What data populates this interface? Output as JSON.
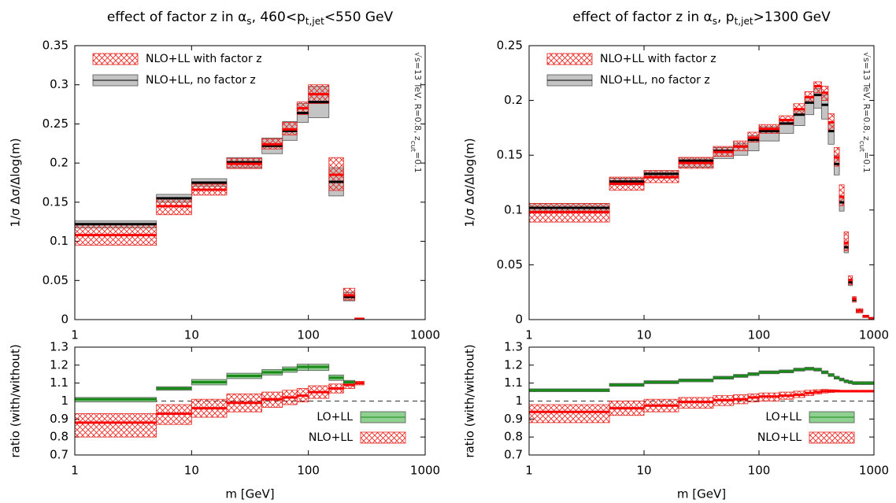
{
  "chart_data": [
    {
      "type": "band-histogram",
      "title": [
        "effect of factor z in α",
        "s",
        ", 460<p",
        "t,jet",
        "<550 GeV"
      ],
      "annotation": [
        "√s=13 TeV, R=0.8, z",
        "cut",
        "=0.1"
      ],
      "ylabel": "1/σ Δσ/Δlog(m)",
      "log_x": true,
      "xlim": [
        1,
        1000
      ],
      "xticks": [
        1,
        10,
        100,
        1000
      ],
      "ylim": [
        0,
        0.35
      ],
      "yticks": [
        0,
        0.05,
        0.1,
        0.15,
        0.2,
        0.25,
        0.3,
        0.35
      ],
      "legend": "top-left",
      "bins": [
        1,
        5,
        10,
        20,
        40,
        60,
        80,
        100,
        150,
        200,
        250,
        300
      ],
      "series": [
        {
          "name": "NLO+LL with factor z",
          "color": "#ff0000",
          "band_color": "#e8201a",
          "band_style": "hatch",
          "values": [
            0.108,
            0.145,
            0.166,
            0.199,
            0.224,
            0.243,
            0.27,
            0.288,
            0.185,
            0.031,
            0.001
          ],
          "low": [
            0.095,
            0.134,
            0.159,
            0.193,
            0.218,
            0.236,
            0.262,
            0.276,
            0.165,
            0.025,
            0
          ],
          "high": [
            0.122,
            0.156,
            0.173,
            0.206,
            0.231,
            0.252,
            0.278,
            0.3,
            0.207,
            0.04,
            0.002
          ]
        },
        {
          "name": "NLO+LL, no factor z",
          "color": "#000000",
          "band_color": "#c4c4c4",
          "band_style": "solid",
          "values": [
            0.122,
            0.155,
            0.175,
            0.201,
            0.222,
            0.241,
            0.264,
            0.278,
            0.176,
            0.029,
            0.001
          ],
          "low": [
            0.117,
            0.15,
            0.17,
            0.194,
            0.212,
            0.229,
            0.252,
            0.258,
            0.158,
            0.024,
            0
          ],
          "high": [
            0.126,
            0.16,
            0.18,
            0.207,
            0.232,
            0.253,
            0.276,
            0.298,
            0.194,
            0.035,
            0.002
          ]
        }
      ]
    },
    {
      "type": "band-histogram",
      "ylabel": "ratio (with/without)",
      "xlabel": "m [GeV]",
      "log_x": true,
      "xlim": [
        1,
        1000
      ],
      "xticks": [
        1,
        10,
        100,
        1000
      ],
      "ylim": [
        0.7,
        1.3
      ],
      "yticks": [
        0.7,
        0.8,
        0.9,
        1,
        1.1,
        1.2,
        1.3
      ],
      "reference_line": 1,
      "legend": "bottom-right",
      "bins": [
        1,
        5,
        10,
        20,
        40,
        60,
        80,
        100,
        150,
        200,
        250,
        300
      ],
      "series": [
        {
          "name": "LO+LL",
          "color": "#1a8a1a",
          "band_color": "#8fcf8f",
          "band_style": "solid",
          "values": [
            1.01,
            1.07,
            1.105,
            1.14,
            1.16,
            1.175,
            1.19,
            1.19,
            1.13,
            1.105,
            null
          ],
          "low": [
            0.995,
            1.06,
            1.09,
            1.125,
            1.145,
            1.16,
            1.17,
            1.17,
            1.115,
            1.095,
            null
          ],
          "high": [
            1.02,
            1.08,
            1.12,
            1.155,
            1.175,
            1.19,
            1.205,
            1.205,
            1.145,
            1.115,
            null
          ]
        },
        {
          "name": "NLO+LL",
          "color": "#ff0000",
          "band_color": "#e8201a",
          "band_style": "hatch",
          "values": [
            0.88,
            0.93,
            0.96,
            0.99,
            1.01,
            1.02,
            1.03,
            1.05,
            1.07,
            1.09,
            1.1
          ],
          "low": [
            0.8,
            0.87,
            0.91,
            0.94,
            0.965,
            0.98,
            0.995,
            1.015,
            1.045,
            1.07,
            1.09
          ],
          "high": [
            0.93,
            0.98,
            1.01,
            1.04,
            1.05,
            1.06,
            1.07,
            1.085,
            1.095,
            1.105,
            1.11
          ]
        }
      ]
    },
    {
      "type": "band-histogram",
      "title": [
        "effect of factor z in α",
        "s",
        ", p",
        "t,jet",
        ">1300 GeV"
      ],
      "annotation": [
        "√s=13 TeV, R=0.8, z",
        "cut",
        "=0.1"
      ],
      "ylabel": "1/σ Δσ/Δlog(m)",
      "log_x": true,
      "xlim": [
        1,
        1000
      ],
      "xticks": [
        1,
        10,
        100,
        1000
      ],
      "ylim": [
        0,
        0.25
      ],
      "yticks": [
        0,
        0.05,
        0.1,
        0.15,
        0.2,
        0.25
      ],
      "legend": "top-left",
      "bins": [
        1,
        5,
        10,
        20,
        40,
        60,
        80,
        100,
        150,
        200,
        250,
        300,
        350,
        400,
        450,
        500,
        550,
        600,
        650,
        700,
        800,
        900,
        1000
      ],
      "series": [
        {
          "name": "NLO+LL with factor z",
          "color": "#ff0000",
          "band_color": "#e8201a",
          "band_style": "hatch",
          "values": [
            0.098,
            0.124,
            0.13,
            0.143,
            0.153,
            0.158,
            0.166,
            0.174,
            0.182,
            0.192,
            0.203,
            0.213,
            0.207,
            0.18,
            0.148,
            0.112,
            0.07,
            0.036,
            0.019,
            0.008,
            0.003,
            0.001
          ],
          "low": [
            0.089,
            0.118,
            0.125,
            0.138,
            0.149,
            0.154,
            0.162,
            0.17,
            0.178,
            0.187,
            0.198,
            0.207,
            0.2,
            0.172,
            0.14,
            0.104,
            0.063,
            0.032,
            0.016,
            0.006,
            0.002,
            0
          ],
          "high": [
            0.106,
            0.13,
            0.136,
            0.148,
            0.158,
            0.163,
            0.171,
            0.178,
            0.186,
            0.197,
            0.208,
            0.217,
            0.213,
            0.188,
            0.157,
            0.123,
            0.08,
            0.04,
            0.021,
            0.01,
            0.004,
            0.002
          ]
        },
        {
          "name": "NLO+LL, no factor z",
          "color": "#000000",
          "band_color": "#c4c4c4",
          "band_style": "solid",
          "values": [
            0.102,
            0.126,
            0.133,
            0.145,
            0.154,
            0.158,
            0.164,
            0.172,
            0.179,
            0.187,
            0.198,
            0.205,
            0.196,
            0.172,
            0.142,
            0.107,
            0.066,
            0.034,
            0.018,
            0.008,
            0.003,
            0.001
          ],
          "low": [
            0.099,
            0.123,
            0.129,
            0.139,
            0.147,
            0.15,
            0.154,
            0.163,
            0.17,
            0.177,
            0.187,
            0.193,
            0.183,
            0.16,
            0.132,
            0.099,
            0.061,
            0.031,
            0.016,
            0.007,
            0.002,
            0
          ],
          "high": [
            0.106,
            0.129,
            0.136,
            0.148,
            0.157,
            0.161,
            0.168,
            0.176,
            0.183,
            0.192,
            0.203,
            0.211,
            0.205,
            0.18,
            0.15,
            0.113,
            0.07,
            0.037,
            0.02,
            0.009,
            0.004,
            0.002
          ]
        }
      ]
    },
    {
      "type": "band-histogram",
      "ylabel": "ratio (with/without)",
      "xlabel": "m [GeV]",
      "log_x": true,
      "xlim": [
        1,
        1000
      ],
      "xticks": [
        1,
        10,
        100,
        1000
      ],
      "ylim": [
        0.7,
        1.3
      ],
      "yticks": [
        0.7,
        0.8,
        0.9,
        1,
        1.1,
        1.2,
        1.3
      ],
      "reference_line": 1,
      "legend": "bottom-right",
      "bins": [
        1,
        5,
        10,
        20,
        40,
        60,
        80,
        100,
        150,
        200,
        250,
        300,
        350,
        400,
        450,
        500,
        550,
        600,
        650,
        700,
        800,
        900,
        1000
      ],
      "series": [
        {
          "name": "LO+LL",
          "color": "#1a8a1a",
          "band_color": "#8fcf8f",
          "band_style": "solid",
          "values": [
            1.06,
            1.09,
            1.105,
            1.115,
            1.13,
            1.14,
            1.15,
            1.16,
            1.165,
            1.175,
            1.18,
            1.175,
            1.16,
            1.145,
            1.13,
            1.12,
            1.11,
            1.105,
            1.1,
            1.1,
            1.1,
            1.1
          ],
          "low": [
            1.052,
            1.082,
            1.097,
            1.107,
            1.122,
            1.132,
            1.142,
            1.152,
            1.157,
            1.167,
            1.172,
            1.167,
            1.152,
            1.137,
            1.122,
            1.112,
            1.102,
            1.097,
            1.092,
            1.092,
            1.092,
            1.092
          ],
          "high": [
            1.068,
            1.098,
            1.113,
            1.123,
            1.138,
            1.148,
            1.158,
            1.168,
            1.173,
            1.183,
            1.188,
            1.183,
            1.168,
            1.153,
            1.138,
            1.128,
            1.118,
            1.113,
            1.108,
            1.108,
            1.108,
            1.108
          ]
        },
        {
          "name": "NLO+LL",
          "color": "#ff0000",
          "band_color": "#e8201a",
          "band_style": "hatch",
          "values": [
            0.94,
            0.96,
            0.975,
            0.995,
            1.005,
            1.01,
            1.02,
            1.025,
            1.03,
            1.035,
            1.045,
            1.05,
            1.055,
            1.055,
            1.055,
            1.055,
            1.055,
            1.055,
            1.055,
            1.055,
            1.055,
            1.055
          ],
          "low": [
            0.88,
            0.92,
            0.94,
            0.96,
            0.975,
            0.985,
            0.995,
            1.0,
            1.01,
            1.02,
            1.03,
            1.04,
            1.045,
            1.048,
            1.05,
            1.05,
            1.05,
            1.05,
            1.05,
            1.05,
            1.05,
            1.05
          ],
          "high": [
            0.98,
            1.0,
            1.01,
            1.02,
            1.03,
            1.035,
            1.04,
            1.045,
            1.05,
            1.055,
            1.06,
            1.063,
            1.065,
            1.063,
            1.062,
            1.06,
            1.06,
            1.06,
            1.06,
            1.06,
            1.06,
            1.06
          ]
        }
      ]
    }
  ]
}
